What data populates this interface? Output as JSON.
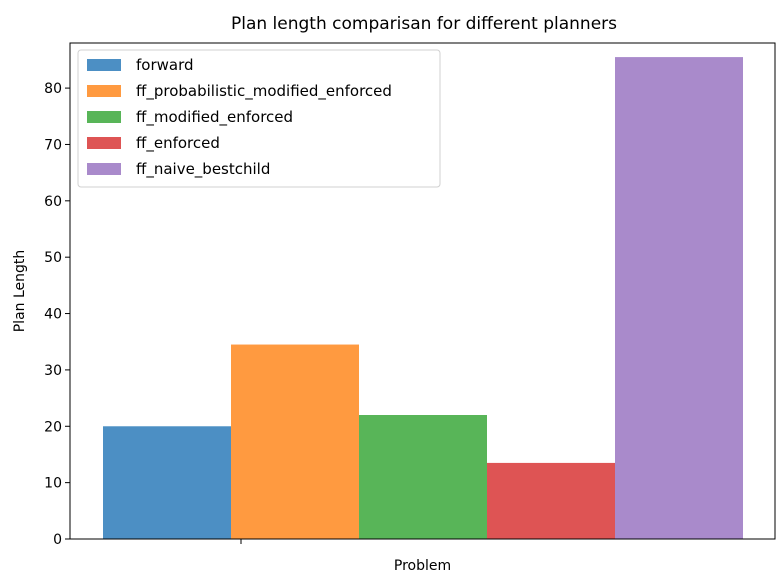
{
  "chart_data": {
    "type": "bar",
    "title": "Plan length comparisan for different planners",
    "xlabel": "Problem",
    "ylabel": "Plan Length",
    "categories": [
      ""
    ],
    "ylim": [
      0,
      88
    ],
    "yticks": [
      0,
      10,
      20,
      30,
      40,
      50,
      60,
      70,
      80
    ],
    "grid": false,
    "legend_position": "upper-left",
    "series": [
      {
        "name": "forward",
        "values": [
          20
        ],
        "color": "#4c8fc4"
      },
      {
        "name": "ff_probabilistic_modified_enforced",
        "values": [
          34.5
        ],
        "color": "#ff9a40"
      },
      {
        "name": "ff_modified_enforced",
        "values": [
          22
        ],
        "color": "#58b558"
      },
      {
        "name": "ff_enforced",
        "values": [
          13.5
        ],
        "color": "#de5454"
      },
      {
        "name": "ff_naive_bestchild",
        "values": [
          85.5
        ],
        "color": "#a98acb"
      }
    ]
  }
}
